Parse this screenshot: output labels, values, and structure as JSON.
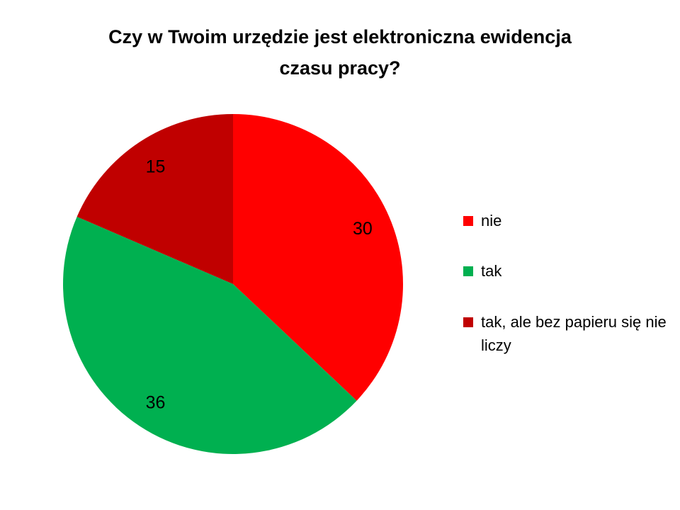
{
  "chart_data": {
    "type": "pie",
    "title_lines": [
      "Czy w Twoim urzędzie jest elektroniczna ewidencja",
      "czasu pracy?"
    ],
    "title": "Czy w Twoim urzędzie jest elektroniczna ewidencja czasu pracy?",
    "categories": [
      "nie",
      "tak",
      "tak, ale bez papieru się nie liczy"
    ],
    "values": [
      30,
      36,
      15
    ],
    "colors": [
      "#FF0000",
      "#00B050",
      "#C00000"
    ],
    "start_angle_deg": 0,
    "direction": "clockwise",
    "legend_position": "right",
    "data_labels_shown": true
  }
}
